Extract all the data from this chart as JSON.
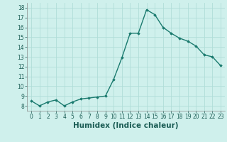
{
  "x": [
    0,
    1,
    2,
    3,
    4,
    5,
    6,
    7,
    8,
    9,
    10,
    11,
    12,
    13,
    14,
    15,
    16,
    17,
    18,
    19,
    20,
    21,
    22,
    23
  ],
  "y": [
    8.5,
    8.0,
    8.4,
    8.6,
    8.0,
    8.4,
    8.7,
    8.8,
    8.9,
    9.0,
    10.7,
    12.9,
    15.4,
    15.4,
    17.8,
    17.3,
    16.0,
    15.4,
    14.9,
    14.6,
    14.1,
    13.2,
    13.0,
    12.1
  ],
  "xlabel": "Humidex (Indice chaleur)",
  "ylim": [
    7.5,
    18.5
  ],
  "yticks": [
    8,
    9,
    10,
    11,
    12,
    13,
    14,
    15,
    16,
    17,
    18
  ],
  "xticks": [
    0,
    1,
    2,
    3,
    4,
    5,
    6,
    7,
    8,
    9,
    10,
    11,
    12,
    13,
    14,
    15,
    16,
    17,
    18,
    19,
    20,
    21,
    22,
    23
  ],
  "line_color": "#1a7a6e",
  "marker": "D",
  "marker_size": 1.8,
  "line_width": 1.0,
  "bg_color": "#cff0ec",
  "grid_color": "#b0ddd8",
  "tick_label_fontsize": 5.5,
  "xlabel_fontsize": 7.5,
  "xlim": [
    -0.5,
    23.5
  ]
}
